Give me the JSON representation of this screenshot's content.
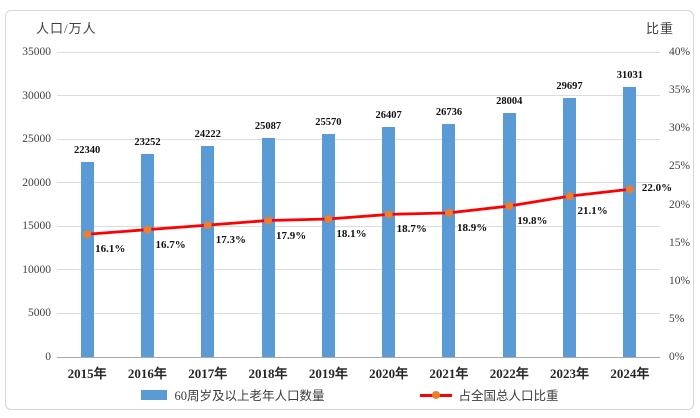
{
  "chart_data": {
    "type": "bar",
    "title": "",
    "categories": [
      "2015年",
      "2016年",
      "2017年",
      "2018年",
      "2019年",
      "2020年",
      "2021年",
      "2022年",
      "2023年",
      "2024年"
    ],
    "series": [
      {
        "name": "60周岁及以上老年人口数量",
        "type": "bar",
        "axis": "left",
        "color": "#5B9BD5",
        "values": [
          22340,
          23252,
          24222,
          25087,
          25570,
          26407,
          26736,
          28004,
          29697,
          31031
        ],
        "value_labels": [
          "22340",
          "23252",
          "24222",
          "25087",
          "25570",
          "26407",
          "26736",
          "28004",
          "29697",
          "31031"
        ]
      },
      {
        "name": "占全国总人口比重",
        "type": "line",
        "axis": "right",
        "color": "#FF0000",
        "marker_color": "#ED7D31",
        "values": [
          16.1,
          16.7,
          17.3,
          17.9,
          18.1,
          18.7,
          18.9,
          19.8,
          21.1,
          22.0
        ],
        "value_labels": [
          "16.1%",
          "16.7%",
          "17.3%",
          "17.9%",
          "18.1%",
          "18.7%",
          "18.9%",
          "19.8%",
          "21.1%",
          "22.0%"
        ]
      }
    ],
    "left_axis": {
      "title": "人口/万人",
      "min": 0,
      "max": 35000,
      "step": 5000,
      "tick_labels": [
        "35000",
        "30000",
        "25000",
        "20000",
        "15000",
        "10000",
        "5000",
        "0"
      ]
    },
    "right_axis": {
      "title": "比重",
      "min": 0,
      "max": 40,
      "step": 5,
      "tick_labels": [
        "40%",
        "35%",
        "30%",
        "25%",
        "20%",
        "15%",
        "10%",
        "5%",
        "0%"
      ]
    },
    "grid": true,
    "legend_position": "bottom"
  },
  "legend": {
    "items": [
      {
        "label": "60周岁及以上老年人口数量",
        "swatch": "bar"
      },
      {
        "label": "占全国总人口比重",
        "swatch": "line-with-marker"
      }
    ]
  },
  "colors": {
    "bar": "#5B9BD5",
    "line": "#FF0000",
    "marker": "#ED7D31",
    "gridline": "#DCDCDC",
    "baseline": "#A9A9A9",
    "tick_text": "#404040",
    "data_label_text": "#111111",
    "frame_border": "#D6D6D6"
  }
}
